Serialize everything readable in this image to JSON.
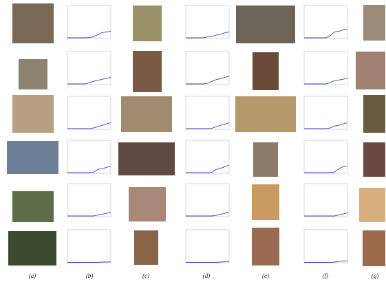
{
  "captions": [
    "(a)",
    "(b)",
    "(c)",
    "(d)",
    "(e)",
    "(f)",
    "(g)"
  ],
  "plot_axes": {
    "ylim": [
      0,
      1
    ]
  },
  "plots": [
    {
      "values": [
        0.02,
        0.02,
        0.02,
        0.02,
        0.02,
        0.03,
        0.05,
        0.12,
        0.18,
        0.2,
        0.22
      ]
    },
    {
      "values": [
        0.02,
        0.02,
        0.02,
        0.02,
        0.02,
        0.05,
        0.06,
        0.1,
        0.13,
        0.17,
        0.2
      ]
    },
    {
      "values": [
        0.02,
        0.02,
        0.02,
        0.02,
        0.02,
        0.02,
        0.08,
        0.2,
        0.22,
        0.26,
        0.28
      ]
    },
    {
      "values": [
        0.02,
        0.02,
        0.02,
        0.02,
        0.02,
        0.05,
        0.1,
        0.13,
        0.16,
        0.19,
        0.22
      ]
    },
    {
      "values": [
        0.02,
        0.02,
        0.02,
        0.02,
        0.02,
        0.04,
        0.1,
        0.15,
        0.18,
        0.22,
        0.25
      ]
    },
    {
      "values": [
        0.02,
        0.02,
        0.02,
        0.02,
        0.02,
        0.02,
        0.06,
        0.12,
        0.14,
        0.16,
        0.2
      ]
    },
    {
      "values": [
        0.02,
        0.02,
        0.02,
        0.02,
        0.02,
        0.02,
        0.04,
        0.08,
        0.12,
        0.16,
        0.2
      ]
    },
    {
      "values": [
        0.02,
        0.02,
        0.02,
        0.02,
        0.02,
        0.02,
        0.03,
        0.08,
        0.12,
        0.15,
        0.2
      ]
    },
    {
      "values": [
        0.02,
        0.02,
        0.02,
        0.02,
        0.02,
        0.02,
        0.04,
        0.1,
        0.12,
        0.16,
        0.2
      ]
    },
    {
      "values": [
        0.02,
        0.02,
        0.02,
        0.02,
        0.02,
        0.02,
        0.03,
        0.12,
        0.14,
        0.18,
        0.22
      ]
    },
    {
      "values": [
        0.02,
        0.02,
        0.02,
        0.02,
        0.02,
        0.02,
        0.03,
        0.12,
        0.15,
        0.2,
        0.25
      ]
    },
    {
      "values": [
        0.02,
        0.02,
        0.02,
        0.02,
        0.02,
        0.02,
        0.02,
        0.04,
        0.14,
        0.2,
        0.22
      ]
    },
    {
      "values": [
        0.02,
        0.02,
        0.02,
        0.02,
        0.02,
        0.02,
        0.02,
        0.05,
        0.07,
        0.1,
        0.14
      ]
    },
    {
      "values": [
        0.02,
        0.02,
        0.02,
        0.02,
        0.02,
        0.02,
        0.02,
        0.04,
        0.07,
        0.1,
        0.14
      ]
    },
    {
      "values": [
        0.02,
        0.02,
        0.02,
        0.02,
        0.02,
        0.02,
        0.02,
        0.02,
        0.05,
        0.08,
        0.12
      ]
    },
    {
      "values": [
        0.01,
        0.01,
        0.01,
        0.01,
        0.01,
        0.01,
        0.01,
        0.01,
        0.02,
        0.02,
        0.03
      ]
    },
    {
      "values": [
        0.01,
        0.01,
        0.01,
        0.01,
        0.01,
        0.01,
        0.01,
        0.01,
        0.02,
        0.03,
        0.04
      ]
    },
    {
      "values": [
        0.01,
        0.01,
        0.01,
        0.01,
        0.01,
        0.01,
        0.01,
        0.02,
        0.04,
        0.05,
        0.06
      ]
    }
  ]
}
